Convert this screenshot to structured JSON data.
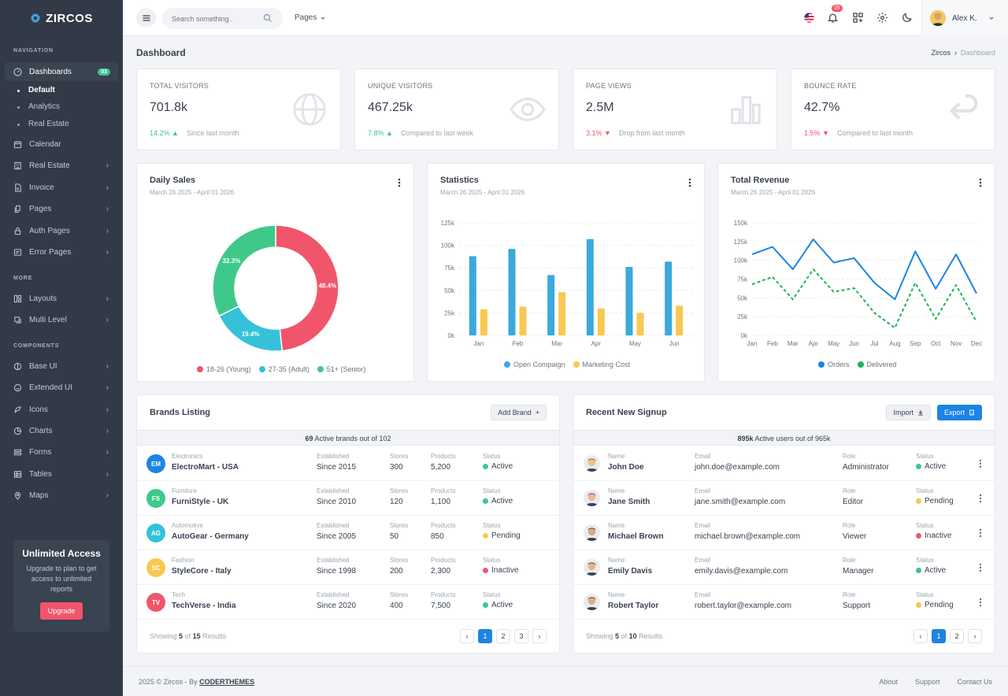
{
  "brand": {
    "name": "ZIRCOS"
  },
  "sidebar": {
    "section_navigation": "NAVIGATION",
    "section_more": "MORE",
    "section_components": "COMPONENTS",
    "dashboards": {
      "label": "Dashboards",
      "badge": "03"
    },
    "dashboard_subs": [
      "Default",
      "Analytics",
      "Real Estate"
    ],
    "nav_items": [
      {
        "label": "Calendar",
        "icon": "calendar-icon"
      },
      {
        "label": "Real Estate",
        "icon": "building-icon"
      },
      {
        "label": "Invoice",
        "icon": "file-icon"
      },
      {
        "label": "Pages",
        "icon": "pages-icon"
      },
      {
        "label": "Auth Pages",
        "icon": "lock-icon"
      },
      {
        "label": "Error Pages",
        "icon": "error-icon"
      }
    ],
    "more_items": [
      {
        "label": "Layouts",
        "icon": "layout-icon"
      },
      {
        "label": "Multi Level",
        "icon": "layers-icon"
      }
    ],
    "component_items": [
      {
        "label": "Base UI",
        "icon": "base-ui-icon"
      },
      {
        "label": "Extended UI",
        "icon": "extended-ui-icon"
      },
      {
        "label": "Icons",
        "icon": "feather-icon"
      },
      {
        "label": "Charts",
        "icon": "chart-icon"
      },
      {
        "label": "Forms",
        "icon": "form-icon"
      },
      {
        "label": "Tables",
        "icon": "table-icon"
      },
      {
        "label": "Maps",
        "icon": "map-pin-icon"
      }
    ],
    "upsell": {
      "title": "Unlimited Access",
      "text": "Upgrade to plan to get access to unlimited reports",
      "button": "Upgrade"
    }
  },
  "topbar": {
    "search_placeholder": "Search something..",
    "pages_label": "Pages",
    "notification_count": "05",
    "user_name": "Alex K."
  },
  "page": {
    "title": "Dashboard",
    "breadcrumb": [
      "Zircos",
      "Dashboard"
    ]
  },
  "stats": [
    {
      "label": "Total Visitors",
      "value": "701.8k",
      "change": "14.2%",
      "dir": "up",
      "note": "Since last month",
      "icon": "globe-icon"
    },
    {
      "label": "Unique Visitors",
      "value": "467.25k",
      "change": "7.8%",
      "dir": "up",
      "note": "Compared to last week",
      "icon": "eye-icon"
    },
    {
      "label": "Page Views",
      "value": "2.5M",
      "change": "3.1%",
      "dir": "down",
      "note": "Drop from last month",
      "icon": "bar-chart-icon"
    },
    {
      "label": "Bounce Rate",
      "value": "42.7%",
      "change": "1.5%",
      "dir": "down",
      "note": "Compared to last month",
      "icon": "return-arrow-icon"
    }
  ],
  "daily_sales": {
    "title": "Daily Sales",
    "subtitle": "March 26 2025 - April 01 2026"
  },
  "statistics": {
    "title": "Statistics",
    "subtitle": "March 26 2025 - April 01 2026"
  },
  "total_revenue": {
    "title": "Total Revenue",
    "subtitle": "March 26 2025 - April 01 2026"
  },
  "chart_data": [
    {
      "type": "pie",
      "title": "Daily Sales",
      "categories": [
        "18-26 (Young)",
        "27-35 (Adult)",
        "51+ (Senior)"
      ],
      "values": [
        48.4,
        19.4,
        32.3
      ],
      "labels": [
        "48.4%",
        "19.4%",
        "32.3%"
      ],
      "colors": [
        "#f1556c",
        "#35c2d8",
        "#3ec98a"
      ],
      "legend": "bottom"
    },
    {
      "type": "bar",
      "title": "Statistics",
      "categories": [
        "Jan",
        "Feb",
        "Mar",
        "Apr",
        "May",
        "Jun"
      ],
      "series": [
        {
          "name": "Open Compaign",
          "values": [
            88,
            96,
            67,
            107,
            76,
            82
          ],
          "color": "#3aa9dc"
        },
        {
          "name": "Marketing Cost",
          "values": [
            29,
            32,
            48,
            30,
            25,
            33
          ],
          "color": "#f9c851"
        }
      ],
      "ylim": [
        0,
        125
      ],
      "yticks": [
        "0k",
        "25k",
        "50k",
        "75k",
        "100k",
        "125k"
      ],
      "grid": true,
      "legend": "bottom"
    },
    {
      "type": "line",
      "title": "Total Revenue",
      "categories": [
        "Jan",
        "Feb",
        "Mar",
        "Apr",
        "May",
        "Jun",
        "Jul",
        "Aug",
        "Sep",
        "Oct",
        "Nov",
        "Dec"
      ],
      "series": [
        {
          "name": "Orders",
          "values": [
            108,
            118,
            88,
            128,
            97,
            103,
            70,
            48,
            112,
            62,
            108,
            56
          ],
          "color": "#1c84e3"
        },
        {
          "name": "Delivered",
          "values": [
            68,
            78,
            48,
            88,
            58,
            63,
            30,
            10,
            70,
            22,
            67,
            18
          ],
          "color": "#1bb55c",
          "dashed": true
        }
      ],
      "ylim": [
        0,
        150
      ],
      "yticks": [
        "0k",
        "25k",
        "50k",
        "75k",
        "100k",
        "125k",
        "150k"
      ],
      "grid": true,
      "legend": "bottom"
    }
  ],
  "brands": {
    "title": "Brands Listing",
    "add_button": "Add Brand",
    "summary_count": "69",
    "summary_text": "Active brands out of 102",
    "columns": {
      "established": "Established",
      "stores": "Stores",
      "products": "Products",
      "status": "Status"
    },
    "rows": [
      {
        "initials": "EM",
        "color": "#1c84e3",
        "category": "Electronics",
        "name": "ElectroMart - USA",
        "established": "Since 2015",
        "stores": "300",
        "products": "5,200",
        "status": "Active",
        "status_color": "#3ec396"
      },
      {
        "initials": "FS",
        "color": "#3ec98a",
        "category": "Furniture",
        "name": "FurniStyle - UK",
        "established": "Since 2010",
        "stores": "120",
        "products": "1,100",
        "status": "Active",
        "status_color": "#3ec396"
      },
      {
        "initials": "AG",
        "color": "#35c2d8",
        "category": "Automotive",
        "name": "AutoGear - Germany",
        "established": "Since 2005",
        "stores": "50",
        "products": "850",
        "status": "Pending",
        "status_color": "#f9c851"
      },
      {
        "initials": "SC",
        "color": "#f9c851",
        "category": "Fashion",
        "name": "StyleCore - Italy",
        "established": "Since 1998",
        "stores": "200",
        "products": "2,300",
        "status": "Inactive",
        "status_color": "#f1556c"
      },
      {
        "initials": "TV",
        "color": "#f1556c",
        "category": "Tech",
        "name": "TechVerse - India",
        "established": "Since 2020",
        "stores": "400",
        "products": "7,500",
        "status": "Active",
        "status_color": "#3ec396"
      }
    ],
    "footer_prefix": "Showing",
    "footer_shown": "5",
    "footer_of": "of",
    "footer_total": "15",
    "footer_suffix": "Results",
    "pages": [
      "‹",
      "1",
      "2",
      "3",
      "›"
    ]
  },
  "signups": {
    "title": "Recent New Signup",
    "import_button": "Import",
    "export_button": "Export",
    "summary_count": "895k",
    "summary_text": "Active users out of 965k",
    "columns": {
      "name": "Name",
      "email": "Email",
      "role": "Role",
      "status": "Status"
    },
    "rows": [
      {
        "name": "John Doe",
        "email": "john.doe@example.com",
        "role": "Administrator",
        "status": "Active",
        "status_color": "#3ec396",
        "skin": "#f0c27b",
        "hair": "#6b4a2b"
      },
      {
        "name": "Jane Smith",
        "email": "jane.smith@example.com",
        "role": "Editor",
        "status": "Pending",
        "status_color": "#f9c851",
        "skin": "#e8b89a",
        "hair": "#8a1d3a"
      },
      {
        "name": "Michael Brown",
        "email": "michael.brown@example.com",
        "role": "Viewer",
        "status": "Inactive",
        "status_color": "#f1556c",
        "skin": "#d9a98a",
        "hair": "#2a2a2a"
      },
      {
        "name": "Emily Davis",
        "email": "emily.davis@example.com",
        "role": "Manager",
        "status": "Active",
        "status_color": "#3ec396",
        "skin": "#e6b590",
        "hair": "#3a2418"
      },
      {
        "name": "Robert Taylor",
        "email": "robert.taylor@example.com",
        "role": "Support",
        "status": "Pending",
        "status_color": "#f9c851",
        "skin": "#dcb08e",
        "hair": "#1e2a30"
      }
    ],
    "footer_prefix": "Showing",
    "footer_shown": "5",
    "footer_of": "of",
    "footer_total": "10",
    "footer_suffix": "Results",
    "pages": [
      "‹",
      "1",
      "2",
      "›"
    ]
  },
  "footer": {
    "copyright": "2025 © Zircos - By",
    "company": "CODERTHEMES",
    "links": [
      "About",
      "Support",
      "Contact Us"
    ]
  }
}
